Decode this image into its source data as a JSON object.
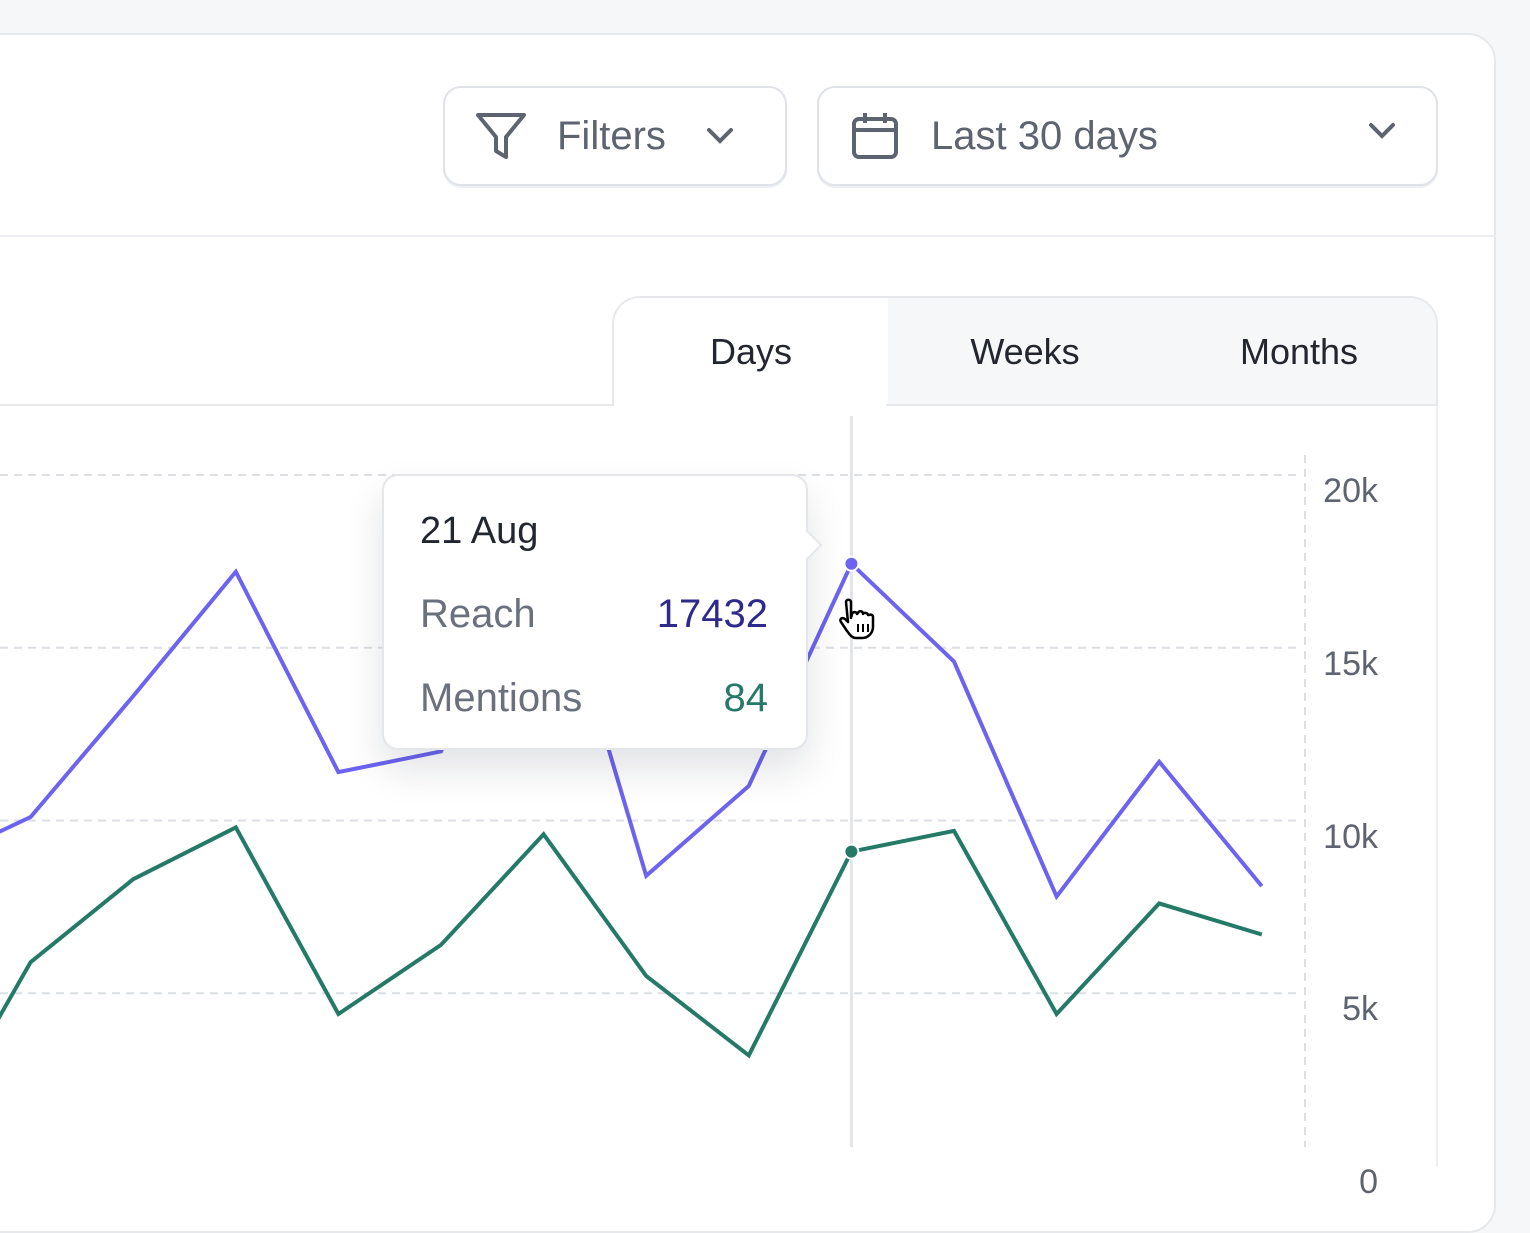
{
  "header": {
    "filters": {
      "label": "Filters",
      "icon": "filter-icon"
    },
    "date_range": {
      "label": "Last 30 days",
      "icon": "calendar-icon"
    }
  },
  "tabs": [
    {
      "label": "Days",
      "active": true
    },
    {
      "label": "Weeks",
      "active": false
    },
    {
      "label": "Months",
      "active": false
    }
  ],
  "tooltip": {
    "date": "21 Aug",
    "reach_label": "Reach",
    "reach_value": "17432",
    "mentions_label": "Mentions",
    "mentions_value": "84"
  },
  "colors": {
    "reach": "#6c63f0",
    "mentions": "#247a66",
    "reach_value": "#2e2a8c"
  },
  "chart_data": {
    "type": "line",
    "x": [
      0,
      1,
      2,
      3,
      4,
      5,
      6,
      7,
      8,
      9,
      10,
      11,
      12,
      13
    ],
    "hover_index": 9,
    "series": [
      {
        "name": "Reach",
        "values": [
          8.7,
          10.1,
          13.6,
          17.2,
          11.4,
          12.0,
          18.4,
          8.4,
          11.0,
          17.432,
          14.6,
          7.8,
          11.7,
          8.1
        ]
      },
      {
        "name": "Mentions",
        "values": [
          0.7,
          5.9,
          8.3,
          9.8,
          4.4,
          6.4,
          9.6,
          5.5,
          3.2,
          9.1,
          9.7,
          4.4,
          7.6,
          6.7
        ]
      }
    ],
    "y_ticks": [
      "20k",
      "15k",
      "10k",
      "5k",
      "0"
    ],
    "y_tick_values": [
      20,
      15,
      10,
      5,
      0
    ],
    "ylim": [
      0,
      20
    ],
    "grid": true
  }
}
